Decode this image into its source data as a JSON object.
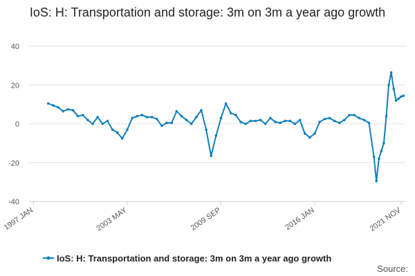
{
  "chart_data": {
    "type": "line",
    "title": "IoS: H: Transportation and storage: 3m on 3m a year ago growth",
    "source_label": "Source:",
    "ylim": [
      -40,
      40
    ],
    "yticks": [
      40,
      20,
      0,
      -20,
      -40
    ],
    "xticks": [
      "1997 JAN",
      "2003 MAY",
      "2009 SEP",
      "2016 JAN",
      "2021 NOV"
    ],
    "grid": true,
    "legend_position": "bottom",
    "series_color": "#0f7fbd",
    "series": [
      {
        "name": "IoS: H: Transportation and storage: 3m on 3m a year ago growth",
        "x": [
          "1998 JAN",
          "1998 MAY",
          "1998 SEP",
          "1999 JAN",
          "1999 MAY",
          "1999 SEP",
          "2000 JAN",
          "2000 MAY",
          "2000 SEP",
          "2001 JAN",
          "2001 MAY",
          "2001 SEP",
          "2002 JAN",
          "2002 MAY",
          "2002 SEP",
          "2003 JAN",
          "2003 MAY",
          "2003 SEP",
          "2004 JAN",
          "2004 MAY",
          "2004 SEP",
          "2005 JAN",
          "2005 MAY",
          "2005 SEP",
          "2006 JAN",
          "2006 MAY",
          "2006 SEP",
          "2007 JAN",
          "2007 MAY",
          "2007 SEP",
          "2008 JAN",
          "2008 MAY",
          "2008 SEP",
          "2009 JAN",
          "2009 MAY",
          "2009 SEP",
          "2010 JAN",
          "2010 MAY",
          "2010 SEP",
          "2011 JAN",
          "2011 MAY",
          "2011 SEP",
          "2012 JAN",
          "2012 MAY",
          "2012 SEP",
          "2013 JAN",
          "2013 MAY",
          "2013 SEP",
          "2014 JAN",
          "2014 MAY",
          "2014 SEP",
          "2015 JAN",
          "2015 MAY",
          "2015 SEP",
          "2016 JAN",
          "2016 MAY",
          "2016 SEP",
          "2017 JAN",
          "2017 MAY",
          "2017 SEP",
          "2018 JAN",
          "2018 MAY",
          "2018 SEP",
          "2019 JAN",
          "2019 MAY",
          "2019 SEP",
          "2020 JAN",
          "2020 MAR",
          "2020 MAY",
          "2020 JUL",
          "2020 SEP",
          "2020 NOV",
          "2021 JAN",
          "2021 MAR",
          "2021 MAY",
          "2021 JUL",
          "2021 SEP",
          "2021 NOV",
          "2022 JAN"
        ],
        "values": [
          10.5,
          9.5,
          8.5,
          6.5,
          7.5,
          7.0,
          4.0,
          4.5,
          2.0,
          0.0,
          3.5,
          0.0,
          1.5,
          -3.0,
          -4.5,
          -7.5,
          -3.0,
          3.0,
          4.0,
          4.5,
          3.5,
          3.5,
          2.5,
          -1.0,
          0.5,
          0.5,
          6.5,
          4.0,
          2.0,
          0.0,
          3.5,
          7.0,
          -3.0,
          -16.5,
          -6.0,
          3.0,
          10.5,
          5.5,
          4.5,
          1.0,
          0.0,
          1.5,
          1.5,
          2.0,
          0.0,
          3.0,
          1.0,
          0.5,
          1.5,
          1.5,
          0.0,
          2.0,
          -5.0,
          -7.0,
          -5.0,
          1.0,
          2.5,
          3.0,
          1.5,
          0.5,
          2.0,
          4.5,
          4.5,
          3.0,
          2.0,
          0.5,
          -17.0,
          -29.5,
          -18.0,
          -14.0,
          -10.0,
          4.0,
          20.0,
          26.5,
          18.0,
          12.0,
          13.0,
          14.0,
          14.5
        ]
      }
    ]
  }
}
